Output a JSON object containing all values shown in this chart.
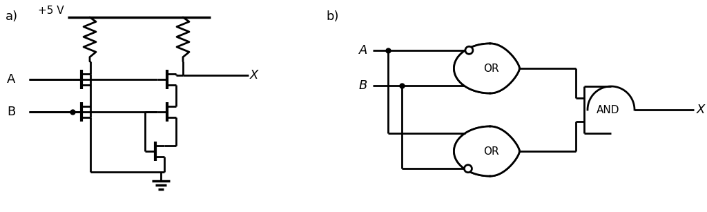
{
  "fig_width": 10.24,
  "fig_height": 3.07,
  "bg_color": "#ffffff",
  "line_color": "#000000",
  "line_width": 2.0,
  "label_a": "A",
  "label_b": "B",
  "label_x": "X",
  "label_5v": "+5 V",
  "label_a_part": "a)",
  "label_b_part": "b)",
  "label_or": "OR",
  "label_and": "AND",
  "font_size": 11,
  "font_size_large": 13
}
